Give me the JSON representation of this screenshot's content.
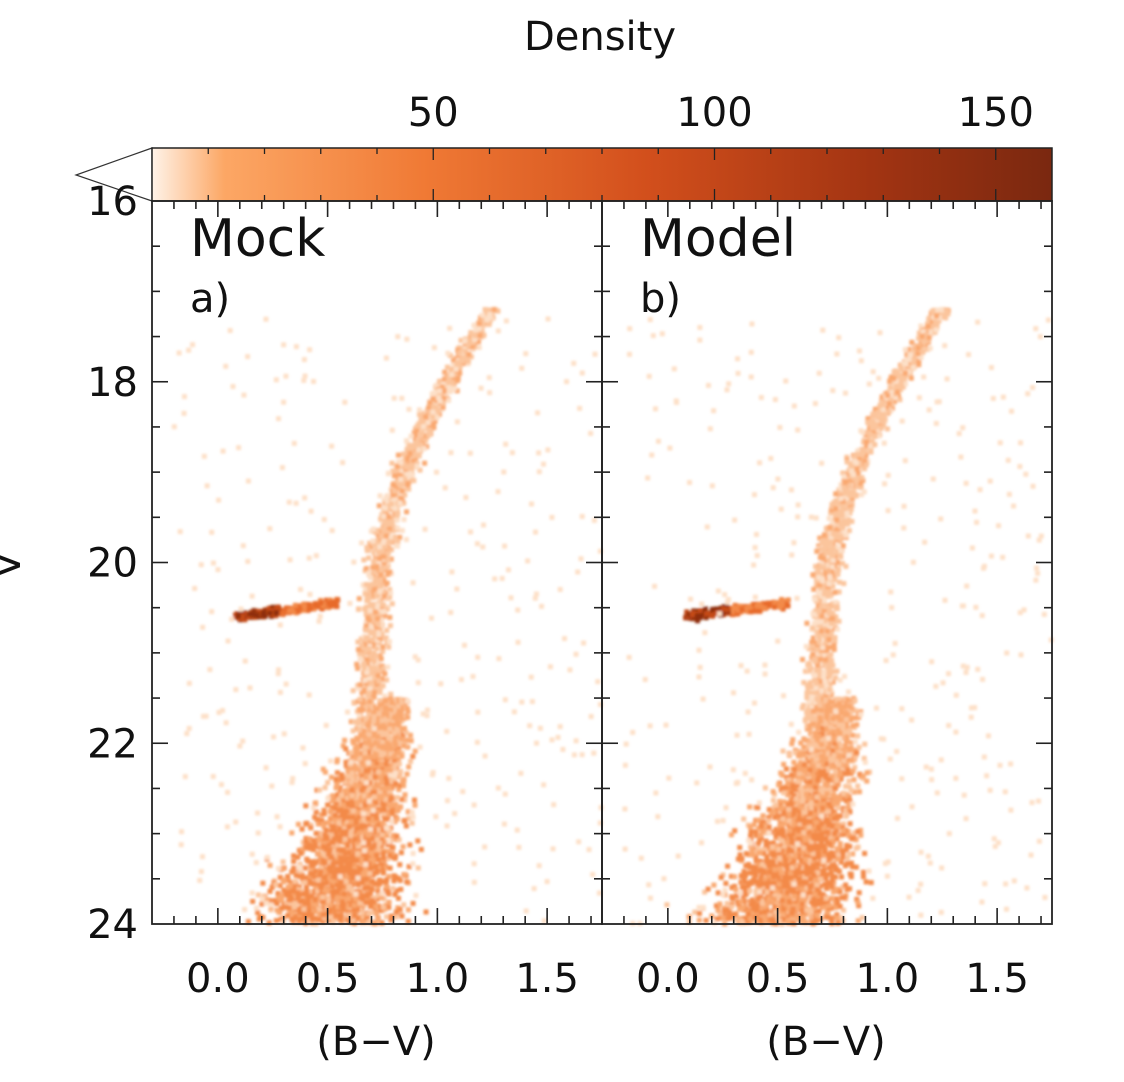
{
  "chart_data": {
    "type": "heatmap",
    "colorbar": {
      "label": "Density",
      "ticks": [
        50,
        100,
        150
      ],
      "range": [
        0,
        160
      ],
      "min_color": "#fff3e8",
      "max_color": "#7a2810",
      "underflow_triangle": true
    },
    "y_axis": {
      "label": "V",
      "range": [
        16,
        24
      ],
      "inverted": true,
      "ticks": [
        "16",
        "18",
        "20",
        "22",
        "24"
      ]
    },
    "panels": [
      {
        "title": "Mock",
        "letter": "a)",
        "xlabel": "(B−V)",
        "xlim": [
          -0.3,
          1.75
        ],
        "xticks": [
          "0.0",
          "0.5",
          "1.0",
          "1.5"
        ]
      },
      {
        "title": "Model",
        "letter": "b)",
        "xlabel": "(B−V)",
        "xlim": [
          -0.3,
          1.75
        ],
        "xticks": [
          "0.0",
          "0.5",
          "1.0",
          "1.5"
        ]
      }
    ],
    "features": [
      {
        "name": "red giant branch",
        "color_top": 1.25,
        "v_top": 17.2
      },
      {
        "name": "horizontal branch",
        "color_range": [
          0.08,
          0.55
        ],
        "v": 20.45
      },
      {
        "name": "main sequence turn-off",
        "color": 0.55,
        "v": 23.4
      }
    ]
  }
}
